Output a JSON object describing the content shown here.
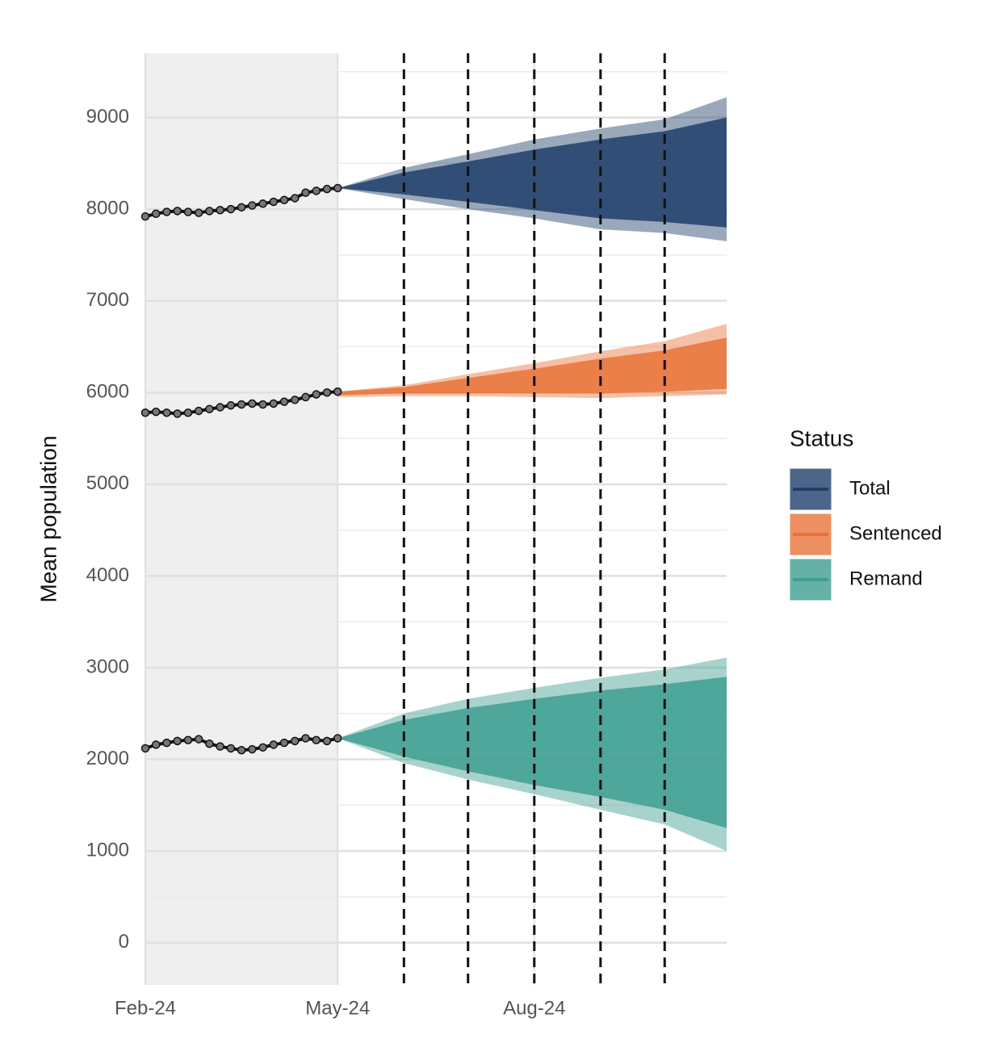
{
  "chart_data": {
    "type": "line",
    "y_label": "Mean population",
    "legend_title": "Status",
    "legend_position": "right",
    "grid": true,
    "xlim": [
      0,
      272
    ],
    "xticks": [
      {
        "value": 0,
        "label": "Feb-24"
      },
      {
        "value": 90,
        "label": "May-24"
      },
      {
        "value": 182,
        "label": "Aug-24"
      }
    ],
    "ylim": [
      -460,
      9700
    ],
    "yticks": [
      0,
      1000,
      2000,
      3000,
      4000,
      5000,
      6000,
      7000,
      8000,
      9000
    ],
    "minor_yticks": [
      500,
      1500,
      2500,
      3500,
      4500,
      5500,
      6500,
      7500,
      8500,
      9500
    ],
    "shaded_region": [
      0,
      90
    ],
    "vlines": [
      121,
      151,
      182,
      213,
      243
    ],
    "x": [
      0,
      5,
      10,
      15,
      20,
      25,
      30,
      35,
      40,
      45,
      50,
      55,
      60,
      65,
      70,
      75,
      80,
      85,
      90
    ],
    "forecast_x": [
      90,
      121,
      151,
      182,
      213,
      243,
      272
    ],
    "series": [
      {
        "name": "Total",
        "color": "#1f3f6a",
        "values": [
          7920,
          7950,
          7970,
          7980,
          7970,
          7960,
          7980,
          7990,
          8000,
          8020,
          8040,
          8060,
          8080,
          8100,
          8120,
          8180,
          8200,
          8220,
          8230
        ],
        "outer_upper": [
          8230,
          8450,
          8600,
          8760,
          8880,
          8980,
          9220
        ],
        "outer_lower": [
          8230,
          8110,
          8000,
          7900,
          7780,
          7740,
          7650
        ],
        "inner_upper": [
          8230,
          8400,
          8520,
          8650,
          8760,
          8850,
          9000
        ],
        "inner_lower": [
          8230,
          8160,
          8080,
          7990,
          7900,
          7860,
          7800
        ]
      },
      {
        "name": "Sentenced",
        "color": "#e8733a",
        "values": [
          5780,
          5790,
          5780,
          5770,
          5780,
          5800,
          5820,
          5840,
          5860,
          5870,
          5880,
          5870,
          5880,
          5900,
          5920,
          5950,
          5980,
          6000,
          6010
        ],
        "outer_upper": [
          6010,
          6080,
          6200,
          6320,
          6450,
          6560,
          6750
        ],
        "outer_lower": [
          5950,
          5960,
          5960,
          5950,
          5940,
          5960,
          5980
        ],
        "inner_upper": [
          6010,
          6060,
          6160,
          6260,
          6370,
          6460,
          6600
        ],
        "inner_lower": [
          5970,
          5990,
          5990,
          5990,
          5990,
          6010,
          6040
        ]
      },
      {
        "name": "Remand",
        "color": "#3f9e90",
        "values": [
          2120,
          2160,
          2180,
          2200,
          2210,
          2220,
          2170,
          2140,
          2120,
          2100,
          2110,
          2130,
          2160,
          2180,
          2200,
          2230,
          2210,
          2200,
          2230
        ],
        "outer_upper": [
          2230,
          2500,
          2660,
          2780,
          2890,
          2980,
          3110
        ],
        "outer_lower": [
          2230,
          1960,
          1780,
          1620,
          1450,
          1290,
          1000
        ],
        "inner_upper": [
          2230,
          2430,
          2560,
          2660,
          2750,
          2820,
          2900
        ],
        "inner_lower": [
          2230,
          2030,
          1870,
          1720,
          1590,
          1450,
          1250
        ]
      }
    ]
  }
}
